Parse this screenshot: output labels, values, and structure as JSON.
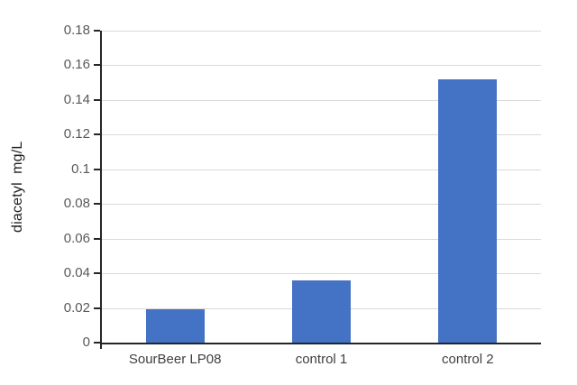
{
  "chart_data": {
    "type": "bar",
    "title": "",
    "xlabel": "",
    "ylabel": "diacetyl  mg/L",
    "categories": [
      "SourBeer LP08",
      "control 1",
      "control 2"
    ],
    "values": [
      0.019,
      0.036,
      0.152
    ],
    "ylim": [
      0,
      0.18
    ],
    "ytick_step": 0.02,
    "yticks": [
      "0",
      "0.02",
      "0.04",
      "0.06",
      "0.08",
      "0.1",
      "0.12",
      "0.14",
      "0.16",
      "0.18"
    ],
    "grid": true,
    "legend": false,
    "colors": {
      "bar": "#4472C4",
      "gridline": "#D9D9D9",
      "axis": "#262626",
      "tick_label": "#595959",
      "category_label": "#404040",
      "axis_title": "#1f1f1f",
      "background": "#FFFFFF"
    }
  }
}
